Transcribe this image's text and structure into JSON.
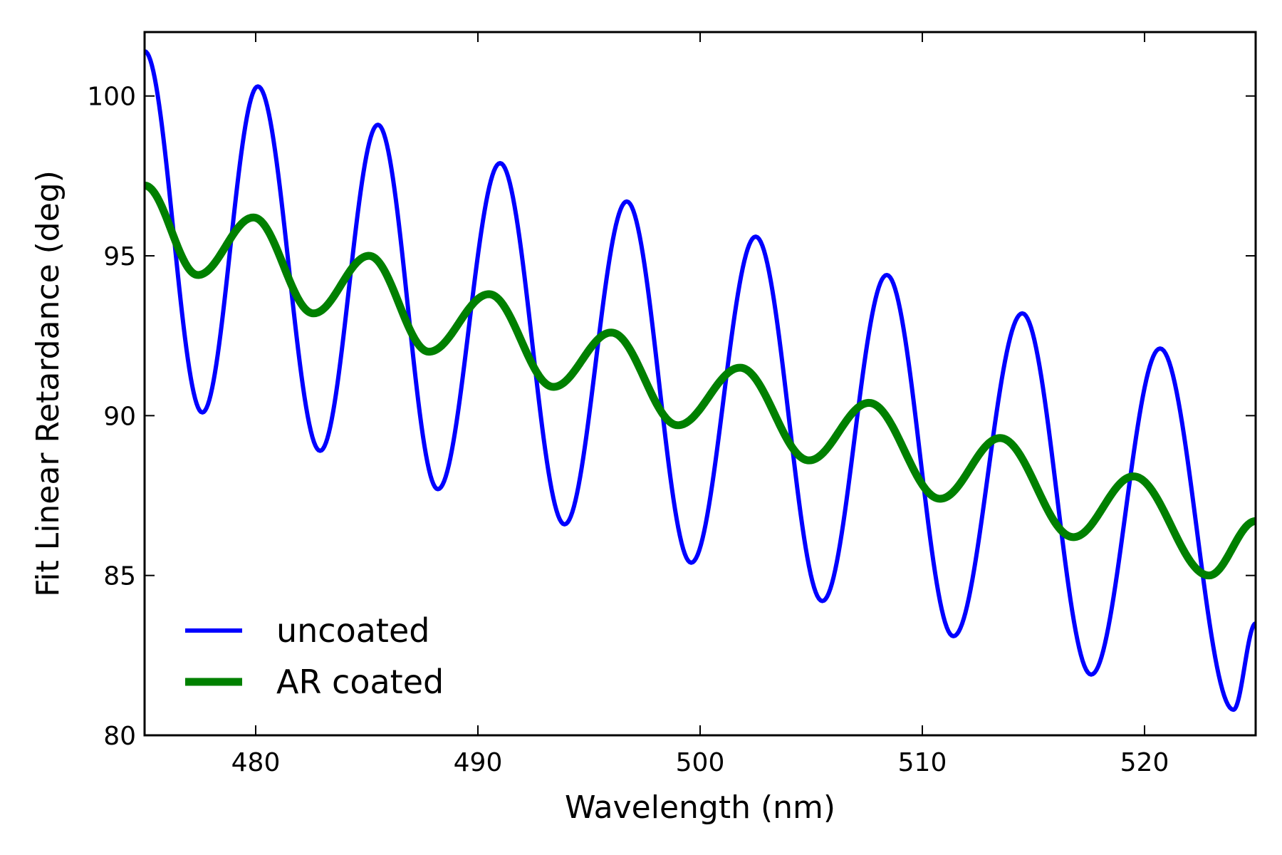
{
  "chart_data": {
    "type": "line",
    "title": "",
    "xlabel": "Wavelength (nm)",
    "ylabel": "Fit Linear Retardance (deg)",
    "xlim": [
      475,
      525
    ],
    "ylim": [
      80,
      102
    ],
    "xticks": [
      480,
      490,
      500,
      510,
      520
    ],
    "yticks": [
      80,
      85,
      90,
      95,
      100
    ],
    "grid": false,
    "legend_position": "bottom-left",
    "series": [
      {
        "name": "uncoated",
        "color": "#0000ff",
        "x": [
          475.0,
          477.6,
          480.1,
          482.9,
          485.5,
          488.2,
          491.0,
          493.9,
          496.7,
          499.6,
          502.5,
          505.5,
          508.4,
          511.4,
          514.5,
          517.6,
          520.7,
          524.0,
          525.0
        ],
        "values": [
          101.4,
          90.1,
          100.3,
          88.9,
          99.1,
          87.7,
          97.9,
          86.6,
          96.7,
          85.4,
          95.6,
          84.2,
          94.4,
          83.1,
          93.2,
          81.9,
          92.1,
          80.8,
          83.5
        ]
      },
      {
        "name": "AR coated",
        "color": "#008000",
        "x": [
          475.0,
          477.4,
          479.9,
          482.6,
          485.1,
          487.8,
          490.5,
          493.4,
          496.0,
          499.0,
          501.8,
          504.9,
          507.6,
          510.8,
          513.5,
          516.8,
          519.5,
          522.9,
          525.0
        ],
        "values": [
          97.2,
          94.4,
          96.2,
          93.2,
          95.0,
          92.0,
          93.8,
          90.9,
          92.6,
          89.7,
          91.5,
          88.6,
          90.4,
          87.4,
          89.3,
          86.2,
          88.1,
          85.0,
          86.7
        ]
      }
    ]
  }
}
